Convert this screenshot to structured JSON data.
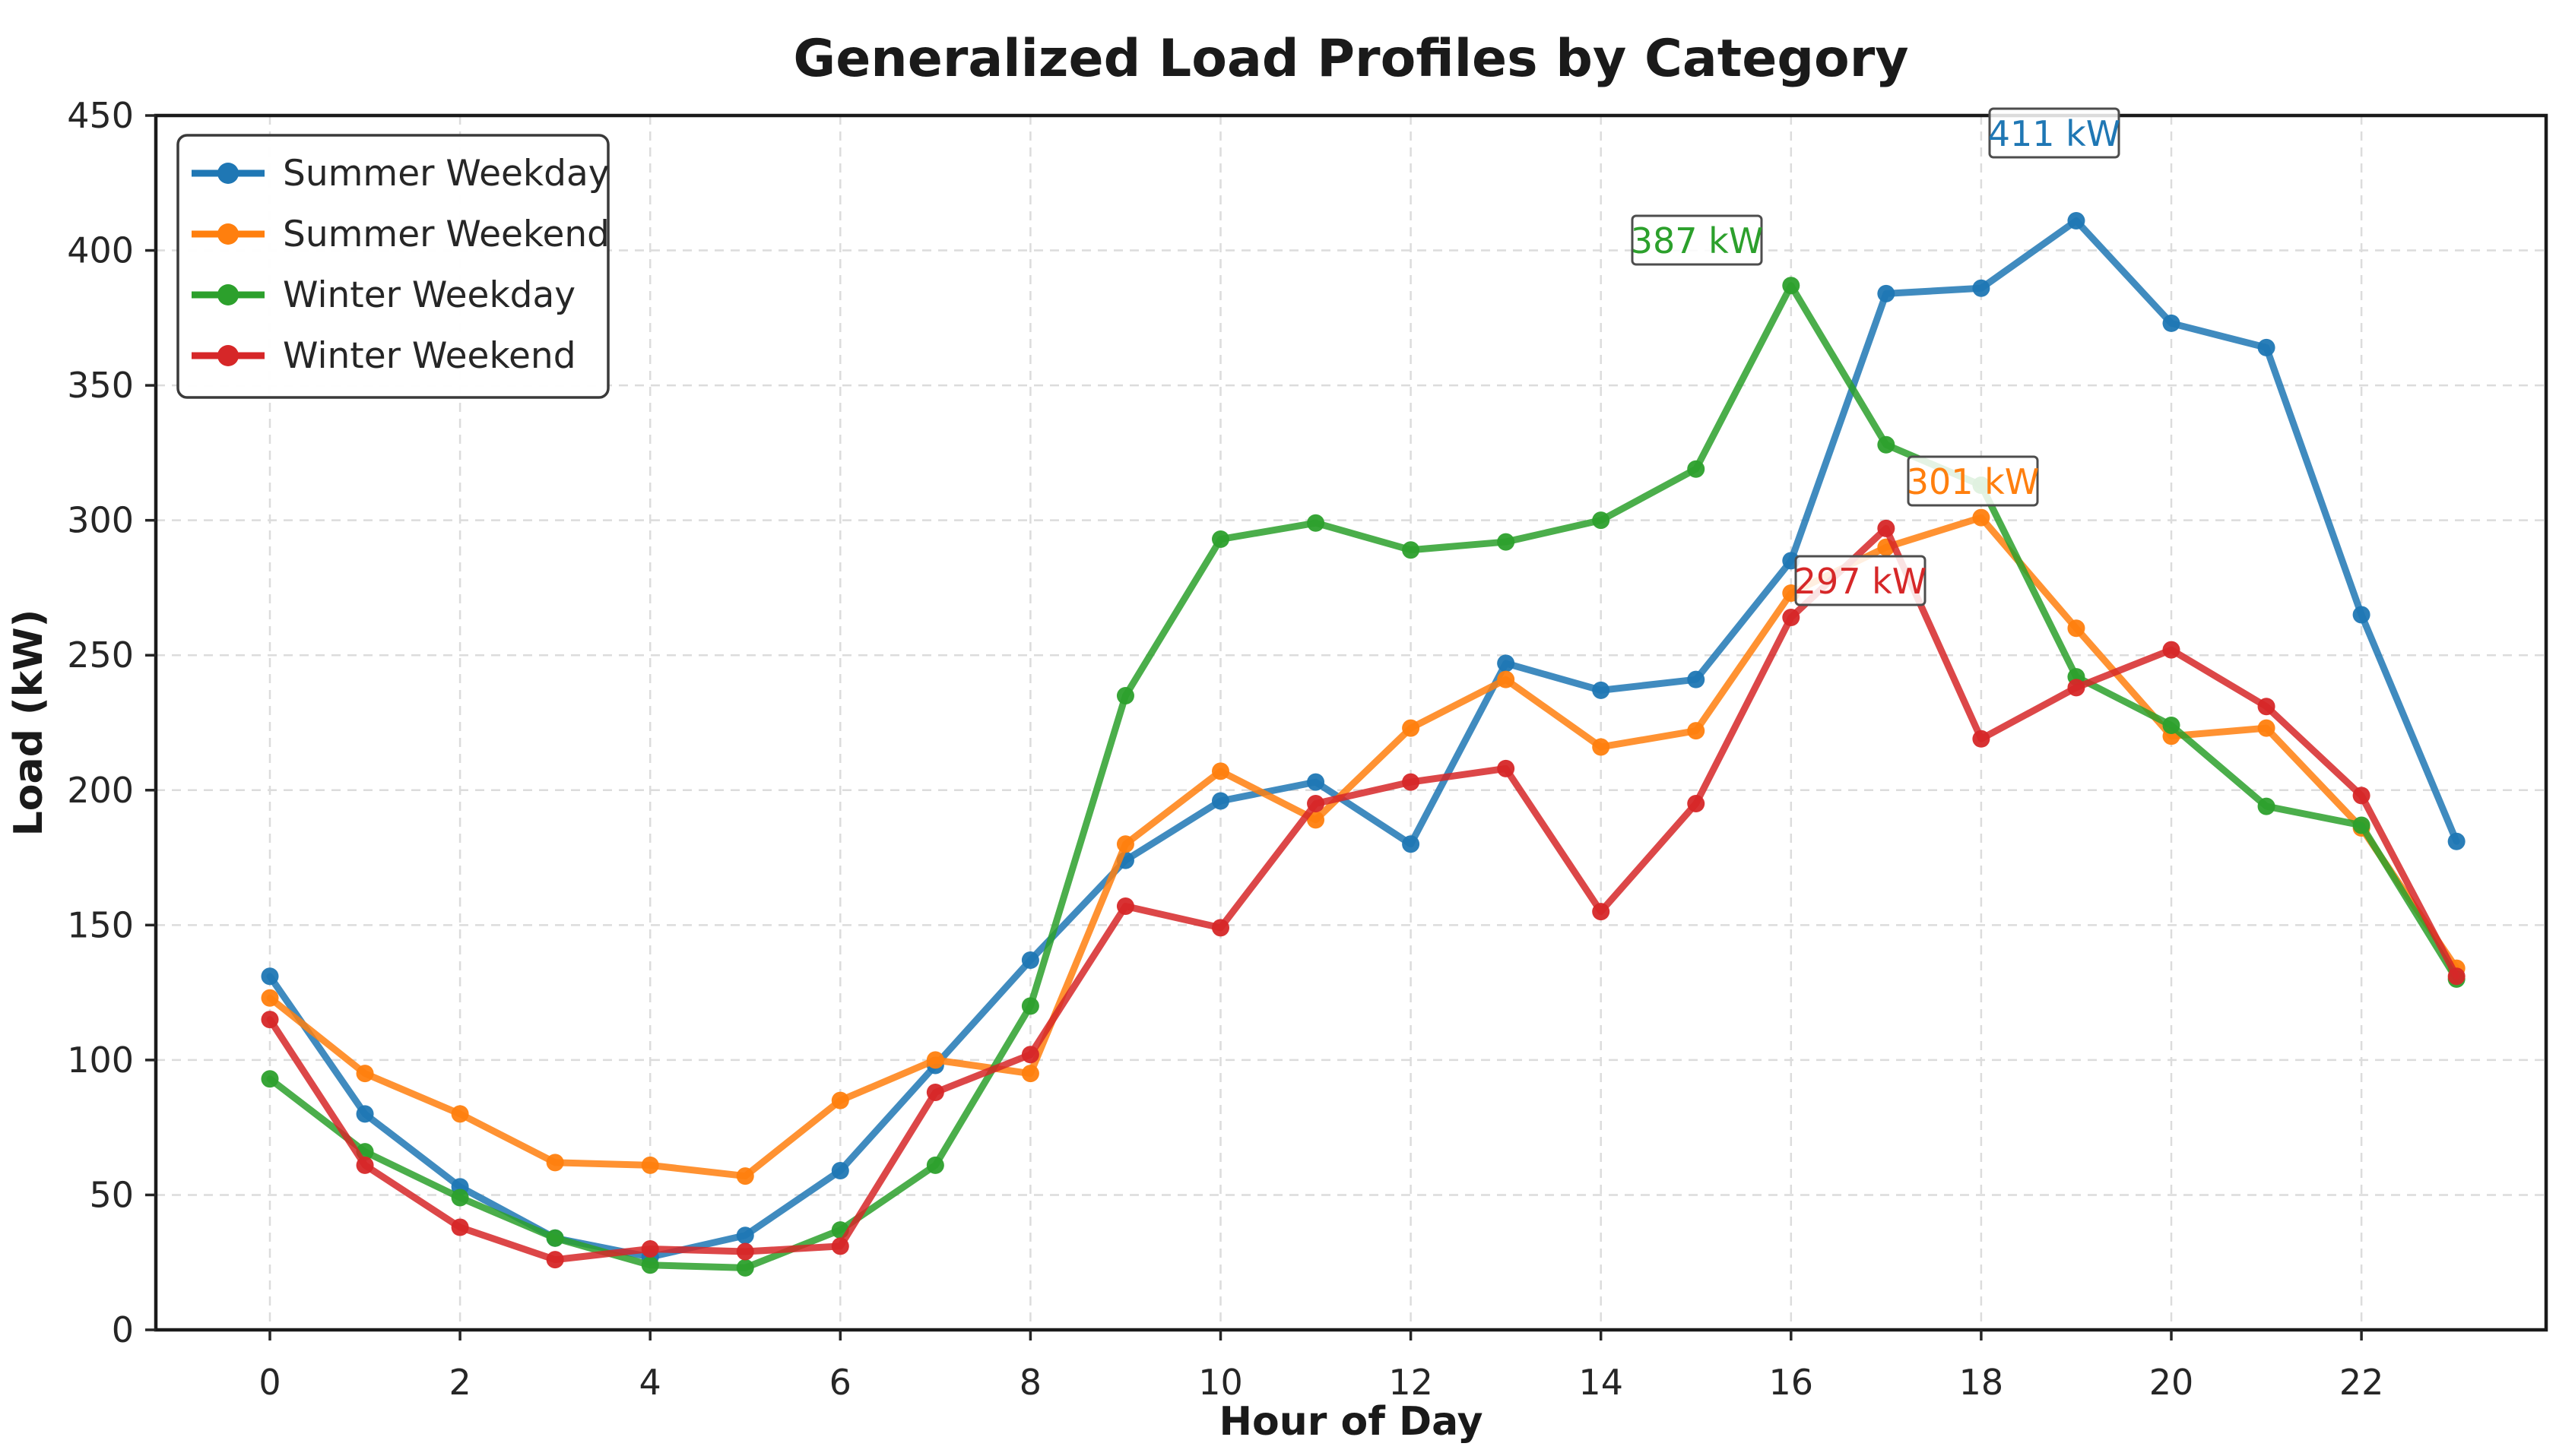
{
  "title": "Generalized Load Profiles by Category",
  "chart_data": {
    "type": "line",
    "title": "Generalized Load Profiles by Category",
    "xlabel": "Hour of Day",
    "ylabel": "Load (kW)",
    "x": [
      0,
      1,
      2,
      3,
      4,
      5,
      6,
      7,
      8,
      9,
      10,
      11,
      12,
      13,
      14,
      15,
      16,
      17,
      18,
      19,
      20,
      21,
      22,
      23
    ],
    "xticks": [
      0,
      2,
      4,
      6,
      8,
      10,
      12,
      14,
      16,
      18,
      20,
      22
    ],
    "yticks": [
      0,
      50,
      100,
      150,
      200,
      250,
      300,
      350,
      400,
      450
    ],
    "xlim": [
      -1.2,
      23.95
    ],
    "ylim": [
      0,
      450
    ],
    "grid": true,
    "legend_position": "upper left",
    "series": [
      {
        "name": "Summer Weekday",
        "color": "#1f77b4",
        "values": [
          131,
          80,
          53,
          34,
          27,
          35,
          59,
          98,
          137,
          174,
          196,
          203,
          180,
          247,
          237,
          241,
          285,
          384,
          386,
          411,
          373,
          364,
          265,
          181
        ]
      },
      {
        "name": "Summer Weekend",
        "color": "#ff7f0e",
        "values": [
          123,
          95,
          80,
          62,
          61,
          57,
          85,
          100,
          95,
          180,
          207,
          189,
          223,
          241,
          216,
          222,
          273,
          290,
          301,
          260,
          220,
          223,
          186,
          134
        ]
      },
      {
        "name": "Winter Weekday",
        "color": "#2ca02c",
        "values": [
          93,
          66,
          49,
          34,
          24,
          23,
          37,
          61,
          120,
          235,
          293,
          299,
          289,
          292,
          300,
          319,
          387,
          328,
          313,
          242,
          224,
          194,
          187,
          130
        ]
      },
      {
        "name": "Winter Weekend",
        "color": "#d62728",
        "values": [
          115,
          61,
          38,
          26,
          30,
          29,
          31,
          88,
          102,
          157,
          149,
          195,
          203,
          208,
          155,
          195,
          264,
          297,
          219,
          238,
          252,
          231,
          198,
          131
        ]
      }
    ],
    "annotations": [
      {
        "label": "411 kW",
        "series": "Summer Weekday",
        "color": "#1f77b4",
        "hour": 19,
        "value": 411
      },
      {
        "label": "387 kW",
        "series": "Winter Weekday",
        "color": "#2ca02c",
        "hour": 16,
        "value": 387
      },
      {
        "label": "301 kW",
        "series": "Summer Weekend",
        "color": "#ff7f0e",
        "hour": 18,
        "value": 301
      },
      {
        "label": "297 kW",
        "series": "Winter Weekend",
        "color": "#d62728",
        "hour": 17,
        "value": 297
      }
    ]
  }
}
